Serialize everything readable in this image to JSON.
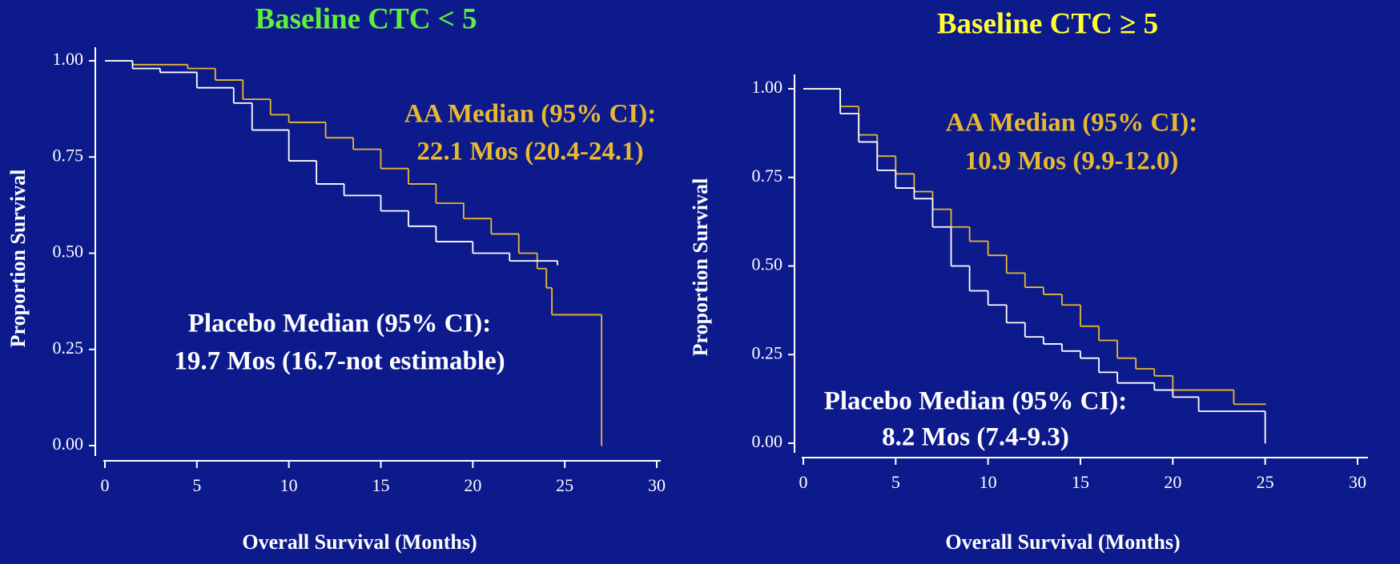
{
  "chart_data": [
    {
      "type": "line",
      "step": true,
      "title": "Baseline CTC < 5",
      "title_color": "#5ef03c",
      "xlabel": "Overall Survival (Months)",
      "ylabel": "Proportion Survival",
      "xlim": [
        0,
        30
      ],
      "xticks": [
        0,
        5,
        10,
        15,
        20,
        25,
        30
      ],
      "ylim": [
        0,
        1
      ],
      "yticks": [
        {
          "value": 0,
          "label": "0.00"
        },
        {
          "value": 0.25,
          "label": "0.25"
        },
        {
          "value": 0.5,
          "label": "0.50"
        },
        {
          "value": 0.75,
          "label": "0.75"
        },
        {
          "value": 1,
          "label": "1.00"
        }
      ],
      "series": [
        {
          "color": "#e8b830",
          "x": [
            0,
            1.5,
            3,
            4.5,
            6,
            7.5,
            9,
            10,
            12,
            13.5,
            15,
            16.5,
            18,
            19.5,
            21,
            22.5,
            23.5,
            24,
            24.3,
            27,
            27
          ],
          "values": [
            1,
            0.99,
            0.99,
            0.98,
            0.95,
            0.9,
            0.86,
            0.84,
            0.8,
            0.77,
            0.72,
            0.68,
            0.63,
            0.59,
            0.55,
            0.5,
            0.46,
            0.41,
            0.34,
            0.34,
            0
          ]
        },
        {
          "color": "#ffffff",
          "x": [
            0,
            1.5,
            3,
            5,
            7,
            8,
            10,
            11.5,
            13,
            15,
            16.5,
            18,
            20,
            22,
            24.6
          ],
          "values": [
            1,
            0.98,
            0.97,
            0.93,
            0.89,
            0.82,
            0.74,
            0.68,
            0.65,
            0.61,
            0.57,
            0.53,
            0.5,
            0.48,
            0.47
          ]
        }
      ],
      "annotations": [
        {
          "text": "AA Median (95% CI):",
          "color": "#e8b830"
        },
        {
          "text": "22.1 Mos (20.4-24.1)",
          "color": "#e8b830"
        },
        {
          "text": "Placebo Median (95% CI):",
          "color": "#ffffff"
        },
        {
          "text": "19.7 Mos (16.7-not estimable)",
          "color": "#ffffff"
        }
      ]
    },
    {
      "type": "line",
      "step": true,
      "title": "Baseline CTC ≥ 5",
      "title_color": "#ffff33",
      "xlabel": "Overall Survival (Months)",
      "ylabel": "Proportion Survival",
      "xlim": [
        0,
        30
      ],
      "xticks": [
        0,
        5,
        10,
        15,
        20,
        25,
        30
      ],
      "ylim": [
        0,
        1
      ],
      "yticks": [
        {
          "value": 0,
          "label": "0.00"
        },
        {
          "value": 0.25,
          "label": "0.25"
        },
        {
          "value": 0.5,
          "label": "0.50"
        },
        {
          "value": 0.75,
          "label": "0.75"
        },
        {
          "value": 1,
          "label": "1.00"
        }
      ],
      "series": [
        {
          "color": "#e8b830",
          "x": [
            0,
            1,
            2,
            3,
            4,
            5,
            6,
            7,
            8,
            9,
            10,
            11,
            12,
            13,
            14,
            15,
            16,
            17,
            18,
            19,
            20,
            23.3,
            25
          ],
          "values": [
            1,
            1,
            0.95,
            0.87,
            0.81,
            0.76,
            0.71,
            0.66,
            0.61,
            0.57,
            0.53,
            0.48,
            0.44,
            0.42,
            0.39,
            0.33,
            0.29,
            0.24,
            0.21,
            0.19,
            0.15,
            0.11,
            0.11
          ]
        },
        {
          "color": "#ffffff",
          "x": [
            0,
            1,
            2,
            3,
            4,
            5,
            6,
            7,
            8,
            9,
            10,
            11,
            12,
            13,
            14,
            15,
            16,
            17,
            19,
            20,
            21.4,
            25,
            25
          ],
          "values": [
            1,
            1,
            0.93,
            0.85,
            0.77,
            0.72,
            0.69,
            0.61,
            0.5,
            0.43,
            0.39,
            0.34,
            0.3,
            0.28,
            0.26,
            0.24,
            0.2,
            0.17,
            0.15,
            0.13,
            0.09,
            0.09,
            0
          ]
        }
      ],
      "annotations": [
        {
          "text": "AA Median (95% CI):",
          "color": "#e8b830"
        },
        {
          "text": "10.9 Mos (9.9-12.0)",
          "color": "#e8b830"
        },
        {
          "text": "Placebo Median (95% CI):",
          "color": "#ffffff"
        },
        {
          "text": "8.2 Mos (7.4-9.3)",
          "color": "#ffffff"
        }
      ]
    }
  ]
}
